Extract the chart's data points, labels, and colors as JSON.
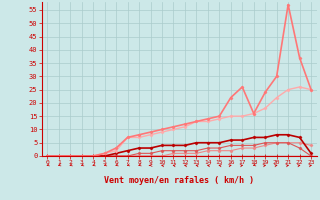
{
  "xlabel": "Vent moyen/en rafales ( km/h )",
  "background_color": "#cce8e8",
  "grid_color": "#aacccc",
  "xlim": [
    -0.5,
    23.5
  ],
  "ylim": [
    0,
    58
  ],
  "yticks": [
    0,
    5,
    10,
    15,
    20,
    25,
    30,
    35,
    40,
    45,
    50,
    55
  ],
  "xticks": [
    0,
    1,
    2,
    3,
    4,
    5,
    6,
    7,
    8,
    9,
    10,
    11,
    12,
    13,
    14,
    15,
    16,
    17,
    18,
    19,
    20,
    21,
    22,
    23
  ],
  "x": [
    0,
    1,
    2,
    3,
    4,
    5,
    6,
    7,
    8,
    9,
    10,
    11,
    12,
    13,
    14,
    15,
    16,
    17,
    18,
    19,
    20,
    21,
    22,
    23
  ],
  "series": [
    {
      "y": [
        0,
        0,
        0,
        0,
        0,
        0,
        0,
        0,
        0,
        0,
        0,
        0,
        0,
        0,
        0,
        0,
        0,
        0,
        0,
        0,
        0,
        0,
        0,
        0
      ],
      "color": "#cc0000",
      "lw": 0.8,
      "marker": "+",
      "ms": 3
    },
    {
      "y": [
        0,
        0,
        0,
        0,
        0,
        0,
        0,
        0,
        0,
        0,
        0,
        1,
        1,
        1,
        2,
        2,
        2,
        3,
        3,
        4,
        5,
        5,
        5,
        4
      ],
      "color": "#ee8888",
      "lw": 0.8,
      "marker": "D",
      "ms": 1.5
    },
    {
      "y": [
        0,
        0,
        0,
        0,
        0,
        0,
        0,
        0,
        1,
        1,
        2,
        2,
        2,
        2,
        3,
        3,
        4,
        4,
        4,
        5,
        5,
        5,
        3,
        0
      ],
      "color": "#dd5555",
      "lw": 0.8,
      "marker": "D",
      "ms": 1.5
    },
    {
      "y": [
        0,
        0,
        0,
        0,
        0,
        0,
        1,
        2,
        3,
        3,
        4,
        4,
        4,
        5,
        5,
        5,
        6,
        6,
        7,
        7,
        8,
        8,
        7,
        1
      ],
      "color": "#bb0000",
      "lw": 1.2,
      "marker": "D",
      "ms": 1.5
    },
    {
      "y": [
        0,
        0,
        0,
        0,
        0,
        1,
        2,
        7,
        7,
        8,
        9,
        10,
        11,
        13,
        13,
        14,
        15,
        15,
        16,
        18,
        22,
        25,
        26,
        25
      ],
      "color": "#ffaaaa",
      "lw": 1.0,
      "marker": "D",
      "ms": 1.5
    },
    {
      "y": [
        0,
        0,
        0,
        0,
        0,
        1,
        3,
        7,
        8,
        9,
        10,
        11,
        12,
        13,
        14,
        15,
        22,
        26,
        16,
        24,
        30,
        57,
        37,
        25
      ],
      "color": "#ff7777",
      "lw": 1.2,
      "marker": "D",
      "ms": 1.5
    }
  ],
  "arrow_angles": [
    225,
    225,
    225,
    225,
    225,
    225,
    225,
    225,
    225,
    180,
    135,
    135,
    135,
    135,
    135,
    135,
    45,
    45,
    225,
    45,
    45,
    45,
    45,
    45
  ]
}
